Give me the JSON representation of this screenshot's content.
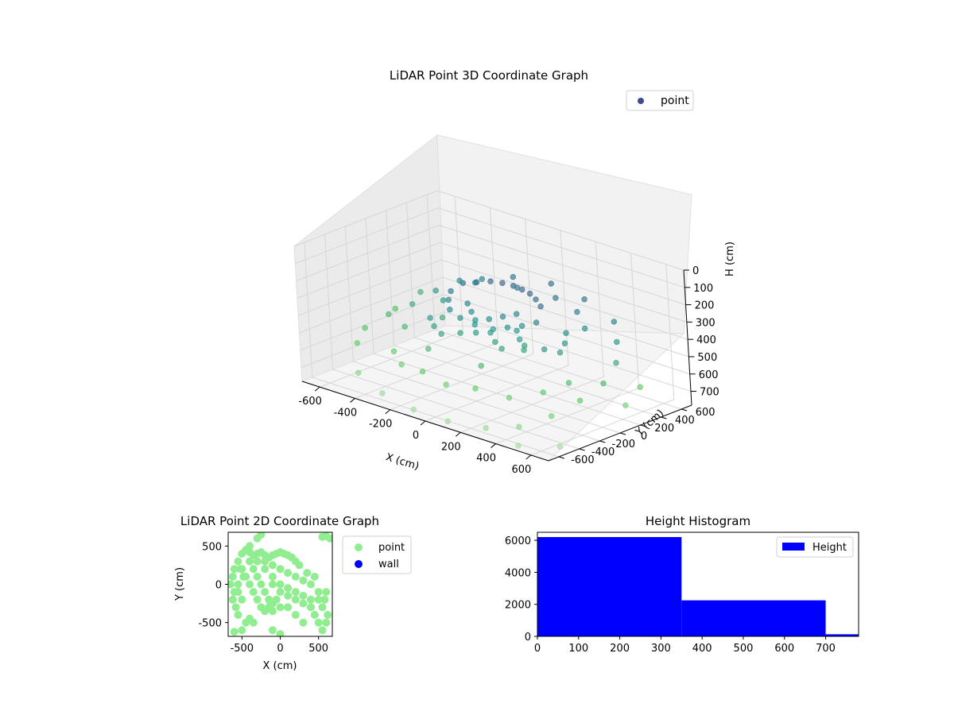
{
  "chart_data": [
    {
      "type": "scatter",
      "projection": "3d",
      "title": "LiDAR Point 3D Coordinate Graph",
      "xlabel": "X (cm)",
      "ylabel": "Y (cm)",
      "zlabel": "H (cm)",
      "xlim": [
        -700,
        700
      ],
      "ylim": [
        -700,
        700
      ],
      "zlim": [
        780,
        0
      ],
      "xticks": [
        -600,
        -400,
        -200,
        0,
        200,
        400,
        600
      ],
      "yticks": [
        -600,
        -400,
        -200,
        0,
        200,
        400,
        600
      ],
      "zticks": [
        0,
        100,
        200,
        300,
        400,
        500,
        600,
        700
      ],
      "z_inverted": true,
      "grid": true,
      "colormap": "viridis",
      "legend": {
        "placement": "upper-right",
        "entries": [
          {
            "label": "point",
            "color": "#3b4b8c"
          }
        ]
      },
      "series": [
        {
          "name": "point",
          "description_of_clusters": "dense dark-purple structure near center (x -300..200, y -100..300, h 200..450); sparse points at larger radius and height",
          "points": [
            [
              -250,
              150,
              260
            ],
            [
              -200,
              200,
              250
            ],
            [
              -150,
              250,
              240
            ],
            [
              -100,
              280,
              240
            ],
            [
              -50,
              300,
              245
            ],
            [
              0,
              300,
              250
            ],
            [
              50,
              290,
              255
            ],
            [
              100,
              260,
              265
            ],
            [
              150,
              220,
              280
            ],
            [
              -280,
              80,
              300
            ],
            [
              -260,
              20,
              330
            ],
            [
              -220,
              -40,
              360
            ],
            [
              -150,
              -60,
              380
            ],
            [
              -80,
              -40,
              400
            ],
            [
              0,
              0,
              410
            ],
            [
              60,
              40,
              390
            ],
            [
              120,
              80,
              370
            ],
            [
              180,
              120,
              340
            ],
            [
              -200,
              100,
              350
            ],
            [
              -150,
              50,
              370
            ],
            [
              -100,
              0,
              390
            ],
            [
              -50,
              50,
              380
            ],
            [
              0,
              100,
              360
            ],
            [
              50,
              150,
              340
            ],
            [
              100,
              60,
              400
            ],
            [
              150,
              0,
              420
            ],
            [
              200,
              -40,
              430
            ],
            [
              220,
              -80,
              440
            ],
            [
              -300,
              -100,
              420
            ],
            [
              -250,
              -150,
              440
            ],
            [
              -180,
              -200,
              450
            ],
            [
              -100,
              -150,
              430
            ],
            [
              -40,
              -100,
              420
            ],
            [
              20,
              -60,
              410
            ],
            [
              80,
              -120,
              430
            ],
            [
              140,
              -160,
              440
            ],
            [
              300,
              200,
              380
            ],
            [
              350,
              100,
              400
            ],
            [
              380,
              0,
              420
            ],
            [
              320,
              -50,
              410
            ],
            [
              -500,
              300,
              420
            ],
            [
              -550,
              150,
              480
            ],
            [
              -600,
              0,
              520
            ],
            [
              -620,
              -200,
              560
            ],
            [
              -580,
              -350,
              600
            ],
            [
              -450,
              450,
              380
            ],
            [
              -350,
              500,
              350
            ],
            [
              -200,
              550,
              300
            ],
            [
              0,
              580,
              280
            ],
            [
              200,
              560,
              300
            ],
            [
              400,
              500,
              350
            ],
            [
              500,
              350,
              400
            ],
            [
              580,
              200,
              460
            ],
            [
              620,
              0,
              520
            ],
            [
              600,
              -200,
              580
            ],
            [
              550,
              -400,
              640
            ],
            [
              450,
              -550,
              700
            ],
            [
              300,
              -620,
              740
            ],
            [
              100,
              -650,
              760
            ],
            [
              -100,
              -640,
              760
            ],
            [
              -300,
              -600,
              740
            ],
            [
              -480,
              -520,
              700
            ],
            [
              -400,
              -300,
              600
            ],
            [
              -300,
              -400,
              620
            ],
            [
              -150,
              -450,
              600
            ],
            [
              0,
              -480,
              620
            ],
            [
              150,
              -450,
              600
            ],
            [
              300,
              -380,
              620
            ],
            [
              420,
              -250,
              580
            ],
            [
              480,
              -100,
              540
            ],
            [
              -450,
              -100,
              520
            ],
            [
              -350,
              100,
              480
            ],
            [
              250,
              400,
              320
            ],
            [
              100,
              450,
              300
            ],
            [
              -100,
              420,
              300
            ],
            [
              -300,
              350,
              320
            ],
            [
              650,
              300,
              600
            ],
            [
              680,
              100,
              650
            ],
            [
              650,
              -500,
              760
            ],
            [
              500,
              -650,
              770
            ],
            [
              -650,
              400,
              500
            ],
            [
              -680,
              200,
              560
            ],
            [
              -200,
              -300,
              520
            ],
            [
              100,
              -300,
              520
            ],
            [
              350,
              300,
              360
            ],
            [
              -400,
              200,
              420
            ]
          ]
        }
      ]
    },
    {
      "type": "scatter",
      "title": "LiDAR Point 2D Coordinate Graph",
      "xlabel": "X (cm)",
      "ylabel": "Y (cm)",
      "xlim": [
        -680,
        680
      ],
      "ylim": [
        -680,
        680
      ],
      "xticks": [
        -500,
        0,
        500
      ],
      "yticks": [
        -500,
        0,
        500
      ],
      "legend": {
        "placement": "outside-right",
        "entries": [
          {
            "label": "point",
            "color": "#90ee90"
          },
          {
            "label": "wall",
            "color": "#0000ff"
          }
        ]
      },
      "series": [
        {
          "name": "point",
          "color": "#90ee90",
          "points": [
            [
              -500,
              400
            ],
            [
              -450,
              450
            ],
            [
              -400,
              420
            ],
            [
              -350,
              380
            ],
            [
              -300,
              400
            ],
            [
              -250,
              420
            ],
            [
              -200,
              380
            ],
            [
              -150,
              350
            ],
            [
              -100,
              380
            ],
            [
              -50,
              400
            ],
            [
              0,
              420
            ],
            [
              50,
              400
            ],
            [
              100,
              380
            ],
            [
              150,
              350
            ],
            [
              200,
              300
            ],
            [
              250,
              250
            ],
            [
              -550,
              300
            ],
            [
              -520,
              200
            ],
            [
              -480,
              100
            ],
            [
              -550,
              0
            ],
            [
              -600,
              -100
            ],
            [
              -620,
              -200
            ],
            [
              -580,
              -300
            ],
            [
              -550,
              -400
            ],
            [
              -500,
              200
            ],
            [
              -450,
              100
            ],
            [
              -400,
              0
            ],
            [
              -350,
              -100
            ],
            [
              -300,
              -200
            ],
            [
              -250,
              -300
            ],
            [
              -200,
              -350
            ],
            [
              -150,
              -300
            ],
            [
              -400,
              300
            ],
            [
              -350,
              200
            ],
            [
              -300,
              100
            ],
            [
              -250,
              0
            ],
            [
              -200,
              -100
            ],
            [
              -150,
              -200
            ],
            [
              -100,
              -250
            ],
            [
              -50,
              -200
            ],
            [
              -300,
              300
            ],
            [
              -200,
              200
            ],
            [
              -100,
              100
            ],
            [
              0,
              0
            ],
            [
              100,
              -50
            ],
            [
              200,
              -100
            ],
            [
              300,
              -150
            ],
            [
              400,
              -200
            ],
            [
              -200,
              300
            ],
            [
              -100,
              250
            ],
            [
              0,
              200
            ],
            [
              100,
              150
            ],
            [
              200,
              100
            ],
            [
              300,
              50
            ],
            [
              400,
              0
            ],
            [
              500,
              -100
            ],
            [
              -100,
              0
            ],
            [
              0,
              -100
            ],
            [
              100,
              -150
            ],
            [
              200,
              -200
            ],
            [
              300,
              -250
            ],
            [
              400,
              -300
            ],
            [
              500,
              -200
            ],
            [
              550,
              -300
            ],
            [
              450,
              -400
            ],
            [
              500,
              -500
            ],
            [
              550,
              -600
            ],
            [
              600,
              -500
            ],
            [
              620,
              -400
            ],
            [
              580,
              -200
            ],
            [
              600,
              -100
            ],
            [
              450,
              100
            ],
            [
              350,
              150
            ],
            [
              550,
              620
            ],
            [
              600,
              630
            ],
            [
              650,
              600
            ],
            [
              -300,
              600
            ],
            [
              -250,
              650
            ],
            [
              -600,
              -620
            ],
            [
              -500,
              -600
            ],
            [
              -450,
              -500
            ],
            [
              -400,
              -450
            ],
            [
              -350,
              -500
            ],
            [
              -100,
              -600
            ],
            [
              0,
              -650
            ],
            [
              300,
              -500
            ],
            [
              200,
              -400
            ],
            [
              100,
              -300
            ],
            [
              0,
              -300
            ],
            [
              -100,
              -350
            ],
            [
              -500,
              -200
            ],
            [
              -550,
              -100
            ],
            [
              -620,
              100
            ],
            [
              -650,
              0
            ],
            [
              -600,
              200
            ],
            [
              -400,
              500
            ]
          ]
        },
        {
          "name": "wall",
          "color": "#0000ff",
          "points": []
        }
      ]
    },
    {
      "type": "bar",
      "title": "Height Histogram",
      "xlabel": "",
      "ylabel": "",
      "xlim": [
        0,
        780
      ],
      "ylim": [
        0,
        6500
      ],
      "xticks": [
        0,
        100,
        200,
        300,
        400,
        500,
        600,
        700
      ],
      "yticks": [
        0,
        2000,
        4000,
        6000
      ],
      "legend": {
        "placement": "upper-right",
        "entries": [
          {
            "label": "Height",
            "color": "#0000ff"
          }
        ]
      },
      "series": [
        {
          "name": "Height",
          "color": "#0000ff",
          "bins": [
            {
              "from": 0,
              "to": 350,
              "count": 6200
            },
            {
              "from": 350,
              "to": 700,
              "count": 2250
            },
            {
              "from": 700,
              "to": 780,
              "count": 130
            }
          ]
        }
      ]
    }
  ]
}
